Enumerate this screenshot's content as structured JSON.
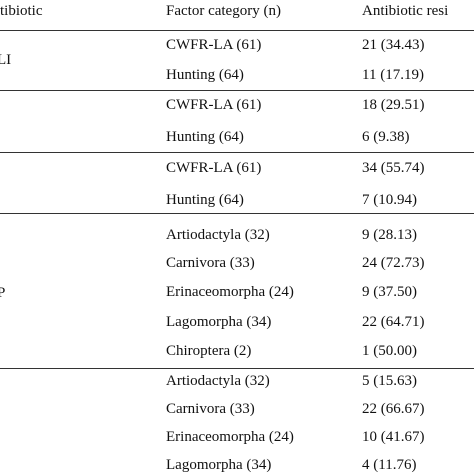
{
  "table": {
    "header": [
      "tibiotic",
      "Factor category (n)",
      "Antibiotic resi"
    ],
    "groups": [
      {
        "label": "LI",
        "rows": [
          [
            "CWFR-LA (61)",
            "21 (34.43)"
          ],
          [
            "Hunting (64)",
            "11 (17.19)"
          ]
        ]
      },
      {
        "rows": [
          [
            "CWFR-LA (61)",
            "18 (29.51)"
          ],
          [
            "Hunting (64)",
            "6 (9.38)"
          ]
        ]
      },
      {
        "rows": [
          [
            "CWFR-LA (61)",
            "34 (55.74)"
          ],
          [
            "Hunting (64)",
            "7 (10.94)"
          ]
        ]
      },
      {
        "label": "P",
        "rows": [
          [
            "Artiodactyla (32)",
            "9 (28.13)"
          ],
          [
            "Carnivora (33)",
            "24 (72.73)"
          ],
          [
            "Erinaceomorpha (24)",
            "9 (37.50)"
          ],
          [
            "Lagomorpha (34)",
            "22 (64.71)"
          ],
          [
            "Chiroptera (2)",
            "1 (50.00)"
          ]
        ]
      },
      {
        "rows": [
          [
            "Artiodactyla (32)",
            "5 (15.63)"
          ],
          [
            "Carnivora (33)",
            "22 (66.67)"
          ],
          [
            "Erinaceomorpha (24)",
            "10 (41.67)"
          ],
          [
            "Lagomorpha (34)",
            "4 (11.76)"
          ]
        ]
      }
    ]
  }
}
